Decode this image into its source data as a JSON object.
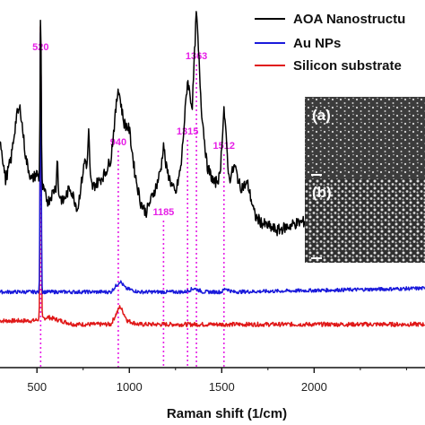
{
  "chart_data": {
    "type": "line",
    "xlabel": "Raman shift (1/cm)",
    "ylabel": "",
    "xlim": [
      300,
      2600
    ],
    "x_ticks": [
      500,
      1000,
      1500,
      2000
    ],
    "ylim": [
      0,
      100
    ],
    "grid": false,
    "legend_position": "top-right",
    "series": [
      {
        "name": "AOA Nanostructu",
        "color": "#000000",
        "baseline": 53,
        "noise": 1.6,
        "extra_segments": [
          [
            300,
            64
          ],
          [
            330,
            52
          ],
          [
            360,
            58
          ],
          [
            390,
            70
          ],
          [
            410,
            72
          ],
          [
            440,
            58
          ],
          [
            470,
            52
          ],
          [
            500,
            54
          ],
          [
            560,
            46
          ],
          [
            600,
            50
          ],
          [
            640,
            46
          ],
          [
            680,
            50
          ],
          [
            720,
            44
          ],
          [
            760,
            58
          ],
          [
            800,
            50
          ],
          [
            840,
            52
          ],
          [
            870,
            54
          ],
          [
            900,
            58
          ],
          [
            940,
            78
          ],
          [
            970,
            68
          ],
          [
            1000,
            66
          ],
          [
            1030,
            54
          ],
          [
            1060,
            46
          ],
          [
            1090,
            43
          ],
          [
            1120,
            47
          ],
          [
            1150,
            51
          ],
          [
            1185,
            58
          ],
          [
            1220,
            52
          ],
          [
            1250,
            48
          ],
          [
            1280,
            56
          ],
          [
            1315,
            80
          ],
          [
            1340,
            72
          ],
          [
            1363,
            99
          ],
          [
            1390,
            72
          ],
          [
            1420,
            56
          ],
          [
            1460,
            51
          ],
          [
            1490,
            53
          ],
          [
            1512,
            72
          ],
          [
            1540,
            52
          ],
          [
            1570,
            56
          ],
          [
            1600,
            50
          ],
          [
            1640,
            51
          ],
          [
            1680,
            42
          ],
          [
            1720,
            40
          ],
          [
            1800,
            38
          ],
          [
            1900,
            40
          ],
          [
            2000,
            41
          ],
          [
            2100,
            42
          ],
          [
            2200,
            42
          ],
          [
            2300,
            43
          ],
          [
            2400,
            43
          ],
          [
            2500,
            44
          ],
          [
            2600,
            44
          ]
        ],
        "peaks": [
          {
            "x": 520,
            "height": 48,
            "width": 4
          },
          {
            "x": 610,
            "height": 10,
            "width": 4
          },
          {
            "x": 780,
            "height": 12,
            "width": 5
          },
          {
            "x": 1185,
            "height": 4,
            "width": 8
          }
        ]
      },
      {
        "name": "Au NPs",
        "color": "#1a1adb",
        "baseline": 21,
        "noise": 0.5,
        "extra_segments": [
          [
            300,
            21
          ],
          [
            900,
            21
          ],
          [
            950,
            24
          ],
          [
            980,
            22
          ],
          [
            1050,
            21
          ],
          [
            1300,
            21
          ],
          [
            1350,
            22
          ],
          [
            1400,
            21
          ],
          [
            1500,
            21
          ],
          [
            1520,
            22
          ],
          [
            1560,
            21
          ],
          [
            2600,
            22
          ]
        ],
        "peaks": [
          {
            "x": 520,
            "height": 77,
            "width": 4
          }
        ]
      },
      {
        "name": "Silicon substrate",
        "color": "#e01818",
        "baseline": 12,
        "noise": 0.6,
        "extra_segments": [
          [
            300,
            13
          ],
          [
            480,
            13
          ],
          [
            560,
            14
          ],
          [
            700,
            12
          ],
          [
            900,
            12
          ],
          [
            950,
            17
          ],
          [
            990,
            13
          ],
          [
            1050,
            12
          ],
          [
            2600,
            12
          ]
        ],
        "peaks": [
          {
            "x": 520,
            "height": 86,
            "width": 4
          }
        ]
      }
    ],
    "peak_markers": [
      {
        "x": 520,
        "label": "520"
      },
      {
        "x": 940,
        "label": "940"
      },
      {
        "x": 1185,
        "label": "1185"
      },
      {
        "x": 1315,
        "label": "1315"
      },
      {
        "x": 1363,
        "label": "1363"
      },
      {
        "x": 1512,
        "label": "1512"
      }
    ],
    "marker_color": "#e61ee6",
    "insets": [
      {
        "label": "(a)"
      },
      {
        "label": "(b)"
      }
    ]
  }
}
